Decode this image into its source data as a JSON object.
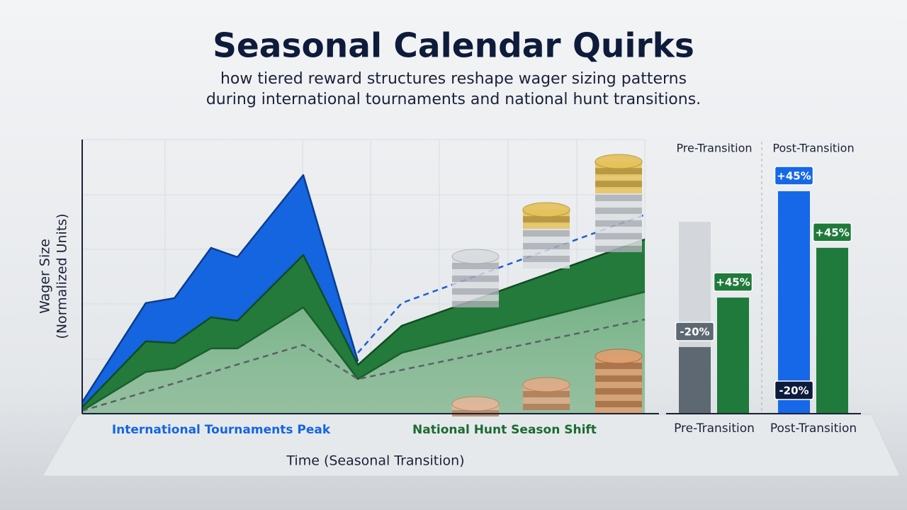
{
  "header": {
    "title": "Seasonal Calendar Quirks",
    "subtitle": [
      "how tiered reward structures reshape wager sizing patterns",
      "during international tournaments and national hunt transitions."
    ]
  },
  "chart_data": [
    {
      "type": "area",
      "y_label": [
        "Wager Size",
        "(Normalized Units)"
      ],
      "x_label": "Time (Seasonal Transition)",
      "xlim": [
        0,
        100
      ],
      "ylim": [
        0,
        100
      ],
      "grid": true,
      "series": [
        {
          "style": "area",
          "color": "#1565e0",
          "x": [
            0,
            11.3,
            16.4,
            22.9,
            27.6,
            39.3,
            49
          ],
          "values": [
            3.9,
            40.2,
            42,
            60.4,
            57,
            87,
            18.9
          ]
        },
        {
          "style": "area",
          "color": "#237a3b",
          "x": [
            0,
            11.3,
            16.4,
            22.9,
            27.6,
            39.3,
            49,
            56.8,
            100
          ],
          "values": [
            2.1,
            26.2,
            25.6,
            35,
            33.7,
            57.8,
            17.6,
            31.9,
            63.5
          ]
        },
        {
          "style": "area-light",
          "color": "#1b5e2e",
          "x": [
            0,
            11.3,
            16.4,
            22.9,
            27.6,
            39.3,
            49,
            56.8,
            100
          ],
          "values": [
            0.8,
            15,
            16.3,
            23.6,
            23.6,
            38.6,
            12.4,
            22,
            44.3
          ]
        },
        {
          "style": "dashed",
          "color": "#1a5fd6",
          "x": [
            49,
            56.8,
            100
          ],
          "values": [
            22,
            40.2,
            72.5
          ]
        },
        {
          "style": "dashed",
          "color": "#5b6168",
          "x": [
            0,
            39.3,
            49,
            100
          ],
          "values": [
            0.8,
            24.9,
            12.4,
            34.2
          ]
        }
      ],
      "annotations": [
        {
          "text": "International Tournaments Peak",
          "color": "#1565e0"
        },
        {
          "text": "National Hunt Season Shift",
          "color": "#1b6b30"
        }
      ]
    },
    {
      "type": "bar",
      "headers": [
        "Pre-Transition",
        "Post-Transition"
      ],
      "categories": [
        "Pre-Transition",
        "Post-Transition"
      ],
      "ylim": [
        0,
        100
      ],
      "ghost": {
        "color": "#d3d7dc",
        "values": [
          69.9,
          null
        ]
      },
      "series": [
        {
          "colors": [
            "#5d6872",
            "#1668e8"
          ],
          "values": [
            24.1,
            81.1
          ],
          "badges": [
            [
              {
                "value": -20,
                "label": "-20%"
              }
            ],
            [
              {
                "value": 45,
                "label": "+45%"
              },
              {
                "value": -20,
                "label": "-20%"
              }
            ]
          ]
        },
        {
          "colors": [
            "#1f7a3c",
            "#1f7a3c"
          ],
          "values": [
            42.2,
            60.4
          ],
          "badges": [
            [
              {
                "value": 45,
                "label": "+45%"
              }
            ],
            [
              {
                "value": 45,
                "label": "+45%"
              }
            ]
          ]
        }
      ]
    }
  ]
}
